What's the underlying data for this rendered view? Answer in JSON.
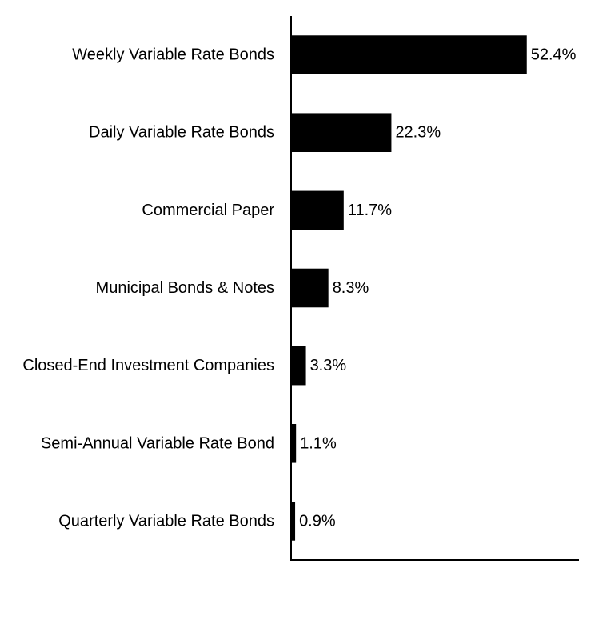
{
  "chart_data": {
    "type": "bar",
    "orientation": "horizontal",
    "categories": [
      "Weekly Variable Rate Bonds",
      "Daily Variable Rate Bonds",
      "Commercial Paper",
      "Municipal Bonds & Notes",
      "Closed-End Investment Companies",
      "Semi-Annual Variable Rate Bond",
      "Quarterly Variable Rate Bonds"
    ],
    "values": [
      52.4,
      22.3,
      11.7,
      8.3,
      3.3,
      1.1,
      0.9
    ],
    "value_labels": [
      "52.4%",
      "22.3%",
      "11.7%",
      "8.3%",
      "3.3%",
      "1.1%",
      "0.9%"
    ],
    "xlim": [
      0,
      64
    ],
    "grid": false,
    "legend": "none",
    "colors": {
      "bar": "#000000",
      "axis": "#000000",
      "text": "#000000"
    }
  }
}
